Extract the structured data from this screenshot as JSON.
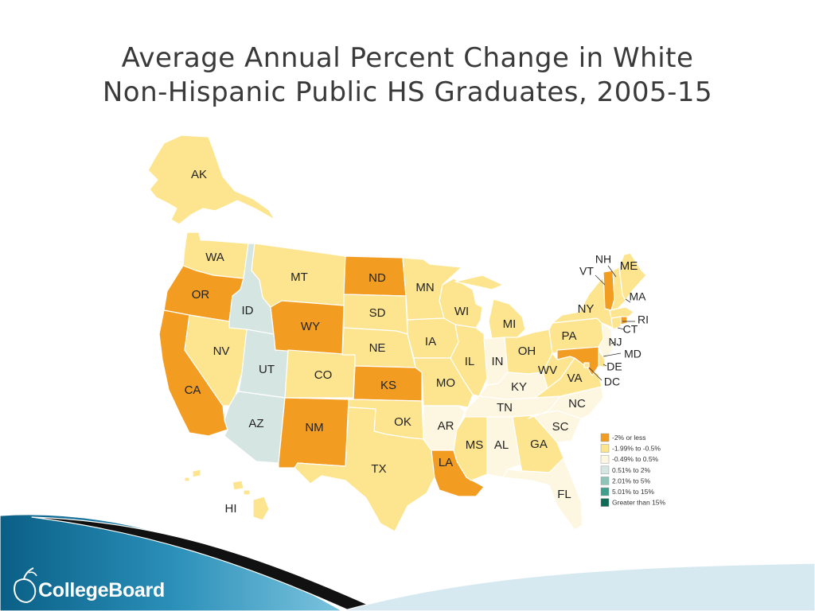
{
  "title": {
    "line1": "Average Annual Percent Change in White",
    "line2": "Non-Hispanic Public HS Graduates, 2005-15"
  },
  "legend": [
    {
      "label": "-2% or less",
      "color": "#f29c22"
    },
    {
      "label": "-1.99% to -0.5%",
      "color": "#fde58f"
    },
    {
      "label": "-0.49% to 0.5%",
      "color": "#fdf6e1"
    },
    {
      "label": "0.51% to 2%",
      "color": "#d5e6e2"
    },
    {
      "label": "2.01% to 5%",
      "color": "#8fc4bb"
    },
    {
      "label": "5.01% to 15%",
      "color": "#3f9e8c"
    },
    {
      "label": "Greater than 15%",
      "color": "#0e6b55"
    }
  ],
  "states": {
    "AK": {
      "label": "AK",
      "category": 1
    },
    "HI": {
      "label": "HI",
      "category": 1
    },
    "WA": {
      "label": "WA",
      "category": 1
    },
    "OR": {
      "label": "OR",
      "category": 0
    },
    "CA": {
      "label": "CA",
      "category": 0
    },
    "ID": {
      "label": "ID",
      "category": 3
    },
    "NV": {
      "label": "NV",
      "category": 1
    },
    "UT": {
      "label": "UT",
      "category": 3
    },
    "AZ": {
      "label": "AZ",
      "category": 3
    },
    "MT": {
      "label": "MT",
      "category": 1
    },
    "WY": {
      "label": "WY",
      "category": 0
    },
    "CO": {
      "label": "CO",
      "category": 1
    },
    "NM": {
      "label": "NM",
      "category": 0
    },
    "ND": {
      "label": "ND",
      "category": 0
    },
    "SD": {
      "label": "SD",
      "category": 1
    },
    "NE": {
      "label": "NE",
      "category": 1
    },
    "KS": {
      "label": "KS",
      "category": 0
    },
    "OK": {
      "label": "OK",
      "category": 1
    },
    "TX": {
      "label": "TX",
      "category": 1
    },
    "MN": {
      "label": "MN",
      "category": 1
    },
    "IA": {
      "label": "IA",
      "category": 1
    },
    "MO": {
      "label": "MO",
      "category": 1
    },
    "AR": {
      "label": "AR",
      "category": 2
    },
    "LA": {
      "label": "LA",
      "category": 0
    },
    "WI": {
      "label": "WI",
      "category": 1
    },
    "IL": {
      "label": "IL",
      "category": 1
    },
    "MI": {
      "label": "MI",
      "category": 1
    },
    "IN": {
      "label": "IN",
      "category": 2
    },
    "OH": {
      "label": "OH",
      "category": 1
    },
    "KY": {
      "label": "KY",
      "category": 2
    },
    "TN": {
      "label": "TN",
      "category": 2
    },
    "MS": {
      "label": "MS",
      "category": 1
    },
    "AL": {
      "label": "AL",
      "category": 2
    },
    "GA": {
      "label": "GA",
      "category": 1
    },
    "FL": {
      "label": "FL",
      "category": 2
    },
    "SC": {
      "label": "SC",
      "category": 2
    },
    "NC": {
      "label": "NC",
      "category": 2
    },
    "VA": {
      "label": "VA",
      "category": 1
    },
    "WV": {
      "label": "WV",
      "category": 1
    },
    "PA": {
      "label": "PA",
      "category": 1
    },
    "NY": {
      "label": "NY",
      "category": 1
    },
    "VT": {
      "label": "VT",
      "category": 0
    },
    "NH": {
      "label": "NH",
      "category": 1
    },
    "ME": {
      "label": "ME",
      "category": 1
    },
    "MA": {
      "label": "MA",
      "category": 1
    },
    "RI": {
      "label": "RI",
      "category": 0
    },
    "CT": {
      "label": "CT",
      "category": 1
    },
    "NJ": {
      "label": "NJ",
      "category": 2
    },
    "DE": {
      "label": "DE",
      "category": 1
    },
    "MD": {
      "label": "MD",
      "category": 0
    },
    "DC": {
      "label": "DC",
      "category": 1
    }
  },
  "footer": {
    "brand": "CollegeBoard"
  }
}
